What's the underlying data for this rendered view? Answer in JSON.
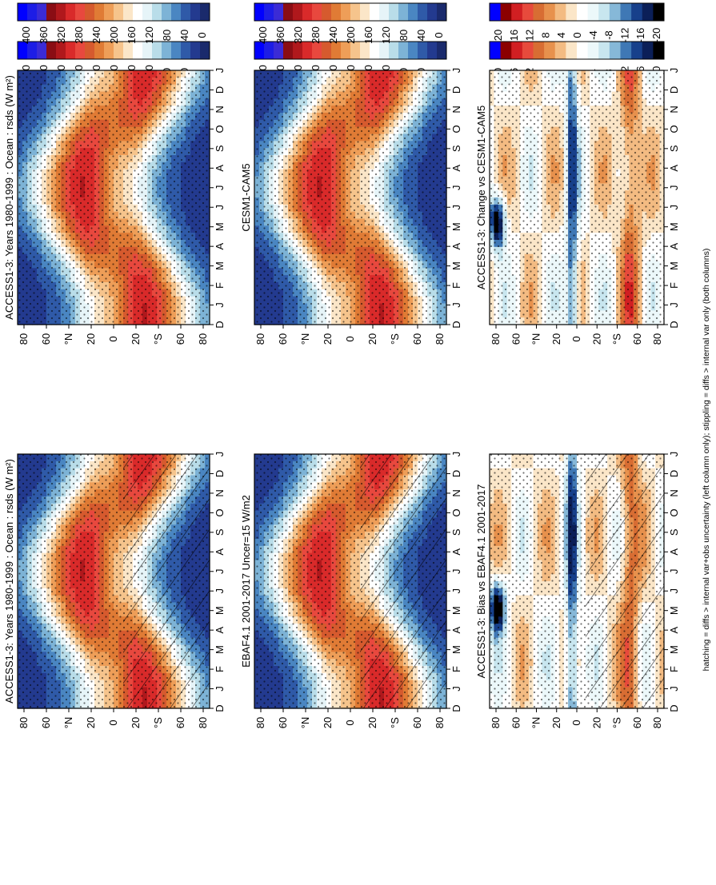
{
  "footer": "hatching = diffs > internal var+obs uncertainty (left column only); stippling = diffs > internal var only (both columns)",
  "month_ticks": [
    "D",
    "J",
    "F",
    "M",
    "A",
    "M",
    "J",
    "J",
    "A",
    "S",
    "O",
    "N",
    "D",
    "J"
  ],
  "lat_ticks": [
    "80",
    "60",
    "°N",
    "20",
    "0",
    "20",
    "°S",
    "60",
    "80"
  ],
  "colors": {
    "abs_palette": [
      "#1a2a6c",
      "#233a8f",
      "#2f5aa8",
      "#4a86c2",
      "#7db3d6",
      "#b9dde9",
      "#e6f4f8",
      "#ffffff",
      "#fbe6c8",
      "#f6c48c",
      "#ee9e58",
      "#e07b35",
      "#d65a2e",
      "#e8483e",
      "#d92a2a",
      "#b0181c",
      "#8a0d14",
      "#3b2bd6",
      "#1d1de6",
      "#0000ff"
    ],
    "diff_palette": [
      "#000000",
      "#0b1f58",
      "#17408b",
      "#3f78b5",
      "#86b8d8",
      "#c8e6ef",
      "#ecf8fa",
      "#ffffff",
      "#fbe6c8",
      "#f3bb82",
      "#e7914d",
      "#d86d33",
      "#e74a3c",
      "#d11f22",
      "#8b0000",
      "#0000ff"
    ]
  },
  "chart_data": [
    {
      "type": "heatmap",
      "title": "ACCESS1-3: Years 1980-1999 : Ocean : rsds (W m²)",
      "x": [
        "D",
        "J",
        "F",
        "M",
        "A",
        "M",
        "J",
        "J",
        "A",
        "S",
        "O",
        "N",
        "D",
        "J"
      ],
      "y": [
        "80",
        "60",
        "°N",
        "20",
        "0",
        "20",
        "°S",
        "60",
        "80"
      ],
      "colorbar_ticks": [
        "400",
        "360",
        "320",
        "280",
        "240",
        "200",
        "160",
        "120",
        "80",
        "40",
        "0"
      ],
      "colorbar_range": [
        0,
        420
      ],
      "hatching": true,
      "stippling": true
    },
    {
      "type": "heatmap",
      "title": "ACCESS1-3: Years 1980-1999 : Ocean : rsds (W m²)",
      "x": [
        "D",
        "J",
        "F",
        "M",
        "A",
        "M",
        "J",
        "J",
        "A",
        "S",
        "O",
        "N",
        "D",
        "J"
      ],
      "y": [
        "80",
        "60",
        "°N",
        "20",
        "0",
        "20",
        "°S",
        "60",
        "80"
      ],
      "colorbar_ticks": [
        "400",
        "360",
        "320",
        "280",
        "240",
        "200",
        "160",
        "120",
        "80",
        "40",
        "0"
      ],
      "colorbar_range": [
        0,
        420
      ],
      "hatching": false,
      "stippling": true
    },
    {
      "type": "heatmap",
      "title": "EBAF4.1 2001-2017 Uncer=15 W/m2",
      "x": [
        "D",
        "J",
        "F",
        "M",
        "A",
        "M",
        "J",
        "J",
        "A",
        "S",
        "O",
        "N",
        "D",
        "J"
      ],
      "y": [
        "80",
        "60",
        "°N",
        "20",
        "0",
        "20",
        "°S",
        "60",
        "80"
      ],
      "colorbar_ticks": [
        "400",
        "360",
        "320",
        "280",
        "240",
        "200",
        "160",
        "120",
        "80",
        "40",
        "0"
      ],
      "colorbar_range": [
        0,
        420
      ],
      "hatching": true,
      "stippling": true
    },
    {
      "type": "heatmap",
      "title": "CESM1-CAM5",
      "x": [
        "D",
        "J",
        "F",
        "M",
        "A",
        "M",
        "J",
        "J",
        "A",
        "S",
        "O",
        "N",
        "D",
        "J"
      ],
      "y": [
        "80",
        "60",
        "°N",
        "20",
        "0",
        "20",
        "°S",
        "60",
        "80"
      ],
      "colorbar_ticks": [
        "400",
        "360",
        "320",
        "280",
        "240",
        "200",
        "160",
        "120",
        "80",
        "40",
        "0"
      ],
      "colorbar_range": [
        0,
        420
      ],
      "hatching": false,
      "stippling": true
    },
    {
      "type": "heatmap",
      "title": "ACCESS1-3: Bias vs EBAF4.1 2001-2017",
      "x": [
        "D",
        "J",
        "F",
        "M",
        "A",
        "M",
        "J",
        "J",
        "A",
        "S",
        "O",
        "N",
        "D",
        "J"
      ],
      "y": [
        "80",
        "60",
        "°N",
        "20",
        "0",
        "20",
        "°S",
        "60",
        "80"
      ],
      "colorbar_ticks": [
        "20",
        "16",
        "12",
        "8",
        "4",
        "0",
        "-4",
        "-8",
        "-12",
        "-16",
        "-20"
      ],
      "colorbar_range": [
        -22,
        22
      ],
      "hatching": true,
      "stippling": true
    },
    {
      "type": "heatmap",
      "title": "ACCESS1-3: Change vs CESM1-CAM5",
      "x": [
        "D",
        "J",
        "F",
        "M",
        "A",
        "M",
        "J",
        "J",
        "A",
        "S",
        "O",
        "N",
        "D",
        "J"
      ],
      "y": [
        "80",
        "60",
        "°N",
        "20",
        "0",
        "20",
        "°S",
        "60",
        "80"
      ],
      "colorbar_ticks": [
        "20",
        "16",
        "12",
        "8",
        "4",
        "0",
        "-4",
        "-8",
        "-12",
        "-16",
        "-20"
      ],
      "colorbar_range": [
        -22,
        22
      ],
      "hatching": false,
      "stippling": true
    }
  ]
}
